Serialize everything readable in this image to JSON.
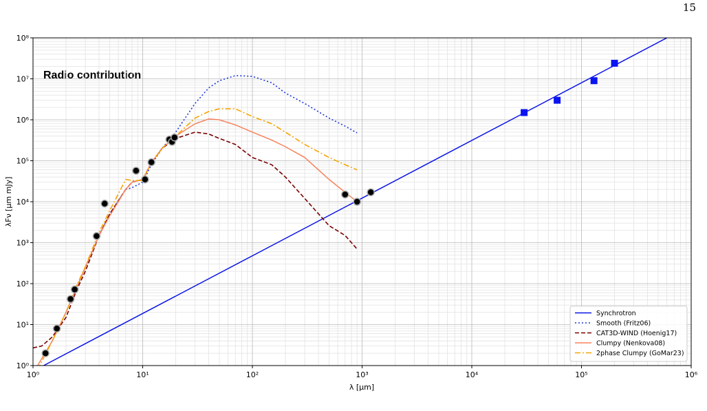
{
  "page_number": "15",
  "chart_data": {
    "type": "line",
    "annotation": "Radio contribution",
    "xlabel": "λ [μm]",
    "ylabel": "λFν [μm mJy]",
    "xscale": "log",
    "yscale": "log",
    "grid": true,
    "legend": "lower right",
    "xlim": [
      1,
      1000000
    ],
    "ylim": [
      1,
      100000000
    ],
    "xticks": [
      {
        "value": 1,
        "label": "10⁰"
      },
      {
        "value": 10,
        "label": "10¹"
      },
      {
        "value": 100,
        "label": "10²"
      },
      {
        "value": 1000,
        "label": "10³"
      },
      {
        "value": 10000,
        "label": "10⁴"
      },
      {
        "value": 100000,
        "label": "10⁵"
      },
      {
        "value": 1000000,
        "label": "10⁶"
      }
    ],
    "yticks": [
      {
        "value": 1,
        "label": "10⁰"
      },
      {
        "value": 10,
        "label": "10¹"
      },
      {
        "value": 100,
        "label": "10²"
      },
      {
        "value": 1000,
        "label": "10³"
      },
      {
        "value": 10000,
        "label": "10⁴"
      },
      {
        "value": 100000,
        "label": "10⁵"
      },
      {
        "value": 1000000,
        "label": "10⁶"
      },
      {
        "value": 10000000,
        "label": "10⁷"
      },
      {
        "value": 100000000,
        "label": "10⁸"
      }
    ],
    "series": [
      {
        "name": "Synchrotron",
        "color": "#0a14e6",
        "linestyle": "solid",
        "x": [
          1.25,
          600000
        ],
        "values": [
          1,
          100000000
        ]
      },
      {
        "name": "Smooth (Fritz06)",
        "color": "#1a33d9",
        "linestyle": "dotted",
        "x": [
          1.5,
          2,
          2.5,
          3,
          4,
          5,
          7,
          8,
          10,
          12,
          15,
          20,
          30,
          40,
          50,
          70,
          100,
          150,
          200,
          300,
          500,
          700,
          900
        ],
        "values": [
          4,
          20,
          80,
          250,
          1500,
          5000,
          20000,
          22000,
          30000,
          80000,
          200000,
          500000,
          2500000,
          6000000,
          9000000,
          12000000,
          11500000,
          8000000,
          4500000,
          2500000,
          1100000,
          700000,
          480000
        ]
      },
      {
        "name": "CAT3D-WIND (Hoenig17)",
        "color": "#7a0000",
        "linestyle": "dashed",
        "x": [
          1,
          1.2,
          1.5,
          2,
          2.5,
          3,
          4,
          5,
          7,
          8,
          10,
          12,
          15,
          20,
          30,
          40,
          50,
          70,
          100,
          150,
          200,
          300,
          500,
          700,
          900
        ],
        "values": [
          2.7,
          3,
          5,
          15,
          70,
          200,
          1500,
          5000,
          20000,
          30000,
          35000,
          90000,
          200000,
          350000,
          500000,
          450000,
          350000,
          250000,
          120000,
          80000,
          40000,
          12000,
          2600,
          1500,
          700
        ]
      },
      {
        "name": "Clumpy (Nenkova08)",
        "color": "#f7825d",
        "linestyle": "solid",
        "x": [
          1.1,
          1.5,
          2,
          2.5,
          3,
          4,
          5,
          7,
          8,
          10,
          12,
          15,
          20,
          30,
          40,
          50,
          70,
          100,
          150,
          200,
          300,
          500,
          700,
          900
        ],
        "values": [
          1,
          4,
          20,
          80,
          250,
          1500,
          4500,
          20000,
          30000,
          35000,
          90000,
          200000,
          400000,
          800000,
          1050000,
          1000000,
          750000,
          500000,
          320000,
          220000,
          120000,
          35000,
          17000,
          10000
        ]
      },
      {
        "name": "2phase Clumpy (GoMar23)",
        "color": "#f5a400",
        "linestyle": "dashdot",
        "x": [
          1.1,
          1.5,
          2,
          2.5,
          3,
          4,
          5,
          7,
          8,
          10,
          12,
          15,
          20,
          30,
          40,
          50,
          70,
          100,
          150,
          200,
          300,
          500,
          700,
          900
        ],
        "values": [
          0.8,
          4,
          20,
          90,
          260,
          1800,
          6000,
          35000,
          33000,
          33000,
          90000,
          200000,
          400000,
          1100000,
          1600000,
          1850000,
          1850000,
          1200000,
          800000,
          500000,
          250000,
          120000,
          80000,
          60000
        ]
      }
    ],
    "observed_points": {
      "color": "#000000",
      "x": [
        1.3,
        1.65,
        2.2,
        2.4,
        3.8,
        4.5,
        8.7,
        10.5,
        12,
        17.5,
        18.5,
        19.5,
        700,
        900,
        1200
      ],
      "values": [
        2,
        8,
        42,
        72,
        1450,
        9000,
        57000,
        35000,
        92000,
        330000,
        290000,
        370000,
        15000,
        10000,
        17000
      ]
    },
    "radio_points": {
      "color": "#0a14f0",
      "x": [
        30000,
        60000,
        130000,
        200000
      ],
      "values": [
        1500000,
        3000000,
        9000000,
        24000000
      ]
    }
  }
}
